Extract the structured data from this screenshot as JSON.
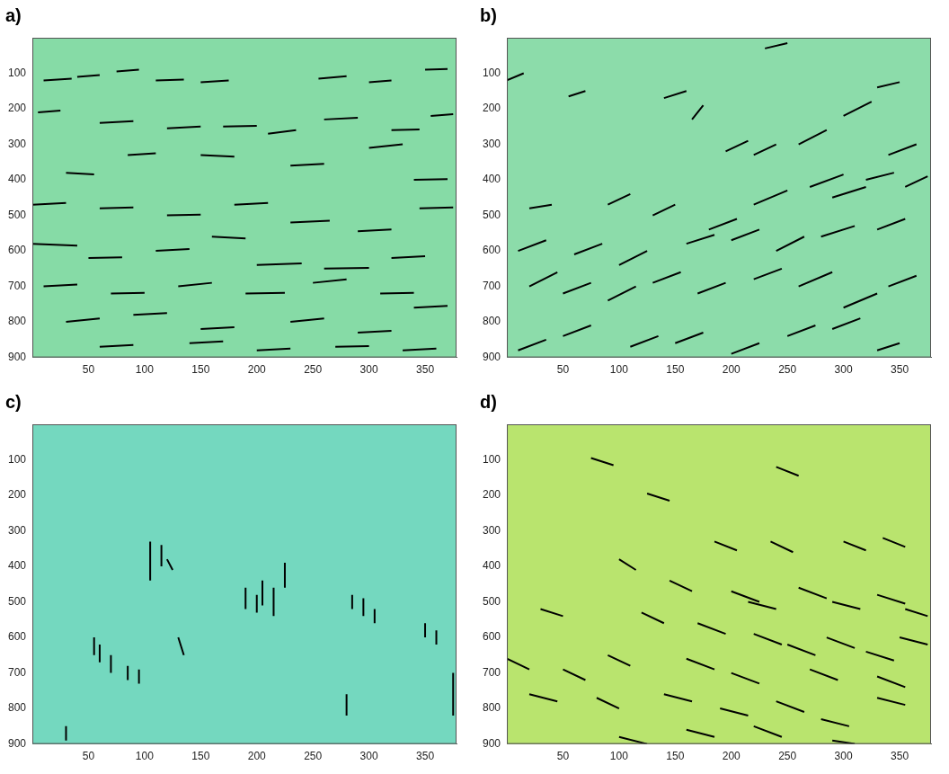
{
  "chart_data": [
    {
      "title": "a)",
      "type": "line",
      "color": "#000000",
      "grid": false,
      "xlim": [
        0,
        378
      ],
      "ylim": [
        900,
        0
      ],
      "xticks": [
        50,
        100,
        150,
        200,
        250,
        300,
        350
      ],
      "yticks": [
        100,
        200,
        300,
        400,
        500,
        600,
        700,
        800,
        900
      ],
      "segments": [
        [
          10,
          120,
          35,
          115
        ],
        [
          40,
          110,
          60,
          105
        ],
        [
          75,
          95,
          95,
          90
        ],
        [
          110,
          120,
          135,
          118
        ],
        [
          150,
          125,
          175,
          120
        ],
        [
          255,
          115,
          280,
          108
        ],
        [
          300,
          125,
          320,
          120
        ],
        [
          350,
          90,
          370,
          88
        ],
        [
          5,
          210,
          25,
          205
        ],
        [
          60,
          240,
          90,
          235
        ],
        [
          120,
          255,
          150,
          250
        ],
        [
          170,
          250,
          200,
          248
        ],
        [
          210,
          270,
          235,
          260
        ],
        [
          260,
          230,
          290,
          225
        ],
        [
          320,
          260,
          345,
          258
        ],
        [
          355,
          220,
          375,
          215
        ],
        [
          30,
          380,
          55,
          385
        ],
        [
          85,
          330,
          110,
          325
        ],
        [
          150,
          330,
          180,
          335
        ],
        [
          230,
          360,
          260,
          355
        ],
        [
          300,
          310,
          330,
          300
        ],
        [
          340,
          400,
          370,
          398
        ],
        [
          0,
          470,
          30,
          465
        ],
        [
          60,
          480,
          90,
          478
        ],
        [
          120,
          500,
          150,
          498
        ],
        [
          180,
          470,
          210,
          465
        ],
        [
          230,
          520,
          265,
          515
        ],
        [
          290,
          545,
          320,
          540
        ],
        [
          345,
          480,
          375,
          478
        ],
        [
          0,
          580,
          40,
          585
        ],
        [
          50,
          620,
          80,
          618
        ],
        [
          110,
          600,
          140,
          595
        ],
        [
          160,
          560,
          190,
          565
        ],
        [
          200,
          640,
          240,
          635
        ],
        [
          260,
          650,
          300,
          648
        ],
        [
          320,
          620,
          350,
          615
        ],
        [
          10,
          700,
          40,
          695
        ],
        [
          70,
          720,
          100,
          718
        ],
        [
          130,
          700,
          160,
          690
        ],
        [
          190,
          720,
          225,
          718
        ],
        [
          250,
          690,
          280,
          680
        ],
        [
          310,
          720,
          340,
          718
        ],
        [
          30,
          800,
          60,
          790
        ],
        [
          90,
          780,
          120,
          775
        ],
        [
          150,
          820,
          180,
          815
        ],
        [
          230,
          800,
          260,
          790
        ],
        [
          290,
          830,
          320,
          825
        ],
        [
          340,
          760,
          370,
          755
        ],
        [
          60,
          870,
          90,
          865
        ],
        [
          140,
          860,
          170,
          855
        ],
        [
          200,
          880,
          230,
          875
        ],
        [
          270,
          870,
          300,
          868
        ],
        [
          330,
          880,
          360,
          875
        ]
      ]
    },
    {
      "title": "b)",
      "type": "line",
      "color": "#000000",
      "grid": false,
      "xlim": [
        0,
        378
      ],
      "ylim": [
        900,
        0
      ],
      "xticks": [
        50,
        100,
        150,
        200,
        250,
        300,
        350
      ],
      "yticks": [
        100,
        200,
        300,
        400,
        500,
        600,
        700,
        800,
        900
      ],
      "segments": [
        [
          0,
          120,
          15,
          100
        ],
        [
          55,
          165,
          70,
          150
        ],
        [
          140,
          170,
          160,
          150
        ],
        [
          230,
          30,
          250,
          15
        ],
        [
          330,
          140,
          350,
          125
        ],
        [
          300,
          220,
          325,
          180
        ],
        [
          165,
          230,
          175,
          190
        ],
        [
          195,
          320,
          215,
          290
        ],
        [
          220,
          330,
          240,
          300
        ],
        [
          260,
          300,
          285,
          260
        ],
        [
          340,
          330,
          365,
          300
        ],
        [
          355,
          420,
          375,
          390
        ],
        [
          20,
          480,
          40,
          470
        ],
        [
          90,
          470,
          110,
          440
        ],
        [
          130,
          500,
          150,
          470
        ],
        [
          180,
          540,
          205,
          510
        ],
        [
          220,
          470,
          250,
          430
        ],
        [
          270,
          420,
          300,
          385
        ],
        [
          290,
          450,
          320,
          420
        ],
        [
          320,
          400,
          345,
          380
        ],
        [
          10,
          600,
          35,
          570
        ],
        [
          60,
          610,
          85,
          580
        ],
        [
          100,
          640,
          125,
          600
        ],
        [
          160,
          580,
          185,
          555
        ],
        [
          200,
          570,
          225,
          540
        ],
        [
          240,
          600,
          265,
          560
        ],
        [
          280,
          560,
          310,
          530
        ],
        [
          330,
          540,
          355,
          510
        ],
        [
          20,
          700,
          45,
          660
        ],
        [
          50,
          720,
          75,
          690
        ],
        [
          90,
          740,
          115,
          700
        ],
        [
          130,
          690,
          155,
          660
        ],
        [
          170,
          720,
          195,
          690
        ],
        [
          220,
          680,
          245,
          650
        ],
        [
          260,
          700,
          290,
          660
        ],
        [
          300,
          760,
          330,
          720
        ],
        [
          340,
          700,
          365,
          670
        ],
        [
          10,
          880,
          35,
          850
        ],
        [
          50,
          840,
          75,
          810
        ],
        [
          110,
          870,
          135,
          840
        ],
        [
          150,
          860,
          175,
          830
        ],
        [
          200,
          890,
          225,
          860
        ],
        [
          250,
          840,
          275,
          810
        ],
        [
          290,
          820,
          315,
          790
        ],
        [
          330,
          880,
          350,
          860
        ]
      ]
    },
    {
      "title": "c)",
      "type": "line",
      "color": "#000000",
      "grid": false,
      "xlim": [
        0,
        378
      ],
      "ylim": [
        900,
        0
      ],
      "xticks": [
        50,
        100,
        150,
        200,
        250,
        300,
        350
      ],
      "yticks": [
        100,
        200,
        300,
        400,
        500,
        600,
        700,
        800,
        900
      ],
      "segments": [
        [
          30,
          850,
          30,
          890
        ],
        [
          55,
          600,
          55,
          650
        ],
        [
          60,
          620,
          60,
          670
        ],
        [
          70,
          650,
          70,
          700
        ],
        [
          85,
          680,
          85,
          720
        ],
        [
          95,
          690,
          95,
          730
        ],
        [
          105,
          330,
          105,
          440
        ],
        [
          115,
          340,
          115,
          400
        ],
        [
          120,
          380,
          125,
          410
        ],
        [
          130,
          600,
          135,
          650
        ],
        [
          190,
          460,
          190,
          520
        ],
        [
          200,
          480,
          200,
          530
        ],
        [
          205,
          440,
          205,
          510
        ],
        [
          215,
          460,
          215,
          540
        ],
        [
          225,
          390,
          225,
          460
        ],
        [
          280,
          760,
          280,
          820
        ],
        [
          285,
          480,
          285,
          520
        ],
        [
          295,
          490,
          295,
          540
        ],
        [
          305,
          520,
          305,
          560
        ],
        [
          350,
          560,
          350,
          600
        ],
        [
          360,
          580,
          360,
          620
        ],
        [
          375,
          700,
          375,
          820
        ]
      ]
    },
    {
      "title": "d)",
      "type": "line",
      "color": "#000000",
      "grid": false,
      "xlim": [
        0,
        378
      ],
      "ylim": [
        900,
        0
      ],
      "xticks": [
        50,
        100,
        150,
        200,
        250,
        300,
        350
      ],
      "yticks": [
        100,
        200,
        300,
        400,
        500,
        600,
        700,
        800,
        900
      ],
      "segments": [
        [
          75,
          95,
          95,
          115
        ],
        [
          240,
          120,
          260,
          145
        ],
        [
          125,
          195,
          145,
          215
        ],
        [
          185,
          330,
          205,
          355
        ],
        [
          235,
          330,
          255,
          360
        ],
        [
          300,
          330,
          320,
          355
        ],
        [
          335,
          320,
          355,
          345
        ],
        [
          100,
          380,
          115,
          410
        ],
        [
          145,
          440,
          165,
          470
        ],
        [
          200,
          470,
          225,
          500
        ],
        [
          215,
          500,
          240,
          520
        ],
        [
          260,
          460,
          285,
          490
        ],
        [
          290,
          500,
          315,
          520
        ],
        [
          330,
          480,
          355,
          505
        ],
        [
          355,
          520,
          375,
          540
        ],
        [
          30,
          520,
          50,
          540
        ],
        [
          120,
          530,
          140,
          560
        ],
        [
          170,
          560,
          195,
          590
        ],
        [
          220,
          590,
          245,
          620
        ],
        [
          250,
          620,
          275,
          650
        ],
        [
          285,
          600,
          310,
          630
        ],
        [
          320,
          640,
          345,
          665
        ],
        [
          350,
          600,
          375,
          620
        ],
        [
          0,
          660,
          20,
          690
        ],
        [
          50,
          690,
          70,
          720
        ],
        [
          90,
          650,
          110,
          680
        ],
        [
          160,
          660,
          185,
          690
        ],
        [
          200,
          700,
          225,
          730
        ],
        [
          270,
          690,
          295,
          720
        ],
        [
          330,
          710,
          355,
          740
        ],
        [
          20,
          760,
          45,
          780
        ],
        [
          80,
          770,
          100,
          800
        ],
        [
          140,
          760,
          165,
          780
        ],
        [
          190,
          800,
          215,
          820
        ],
        [
          240,
          780,
          265,
          810
        ],
        [
          280,
          830,
          305,
          850
        ],
        [
          330,
          770,
          355,
          790
        ],
        [
          100,
          880,
          125,
          900
        ],
        [
          160,
          860,
          185,
          880
        ],
        [
          220,
          850,
          245,
          880
        ],
        [
          290,
          890,
          310,
          900
        ]
      ]
    }
  ]
}
